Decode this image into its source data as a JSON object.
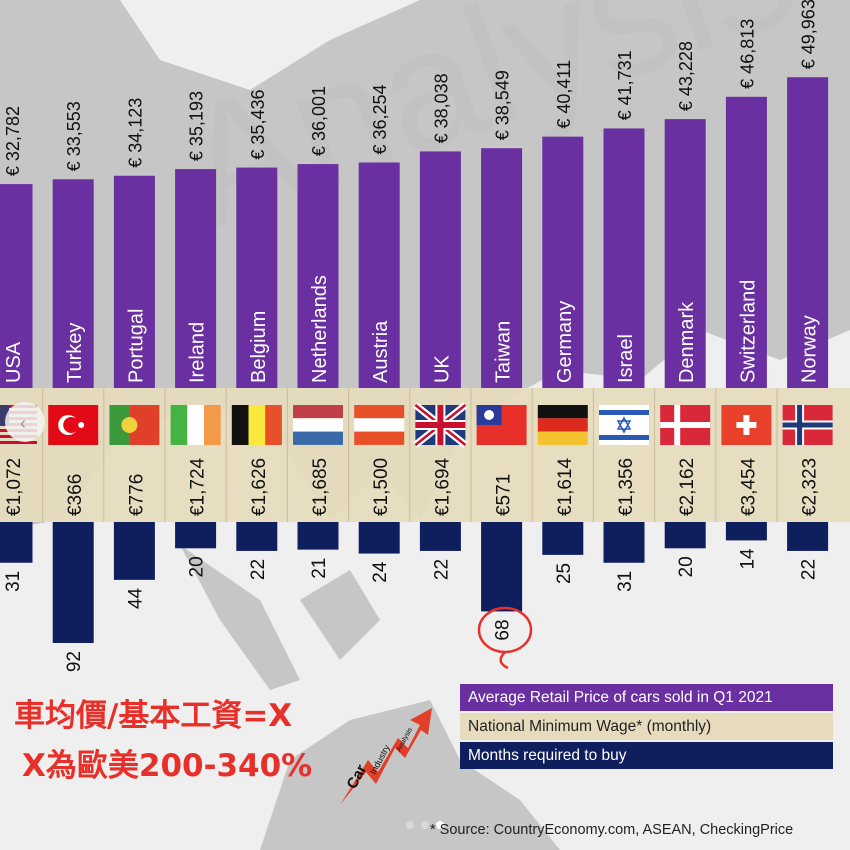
{
  "chart_data": {
    "type": "bar",
    "categories": [
      "USA",
      "Turkey",
      "Portugal",
      "Ireland",
      "Belgium",
      "Netherlands",
      "Austria",
      "UK",
      "Taiwan",
      "Germany",
      "Israel",
      "Denmark",
      "Switzerland",
      "Norway"
    ],
    "series": [
      {
        "name": "Average Retail Price of cars sold in Q1 2021",
        "color": "#6a2fa0",
        "values": [
          32782,
          33553,
          34123,
          35193,
          35436,
          36001,
          36254,
          38038,
          38549,
          40411,
          41731,
          43228,
          46813,
          49963
        ],
        "labels": [
          "€ 32,782",
          "€ 33,553",
          "€ 34,123",
          "€ 35,193",
          "€ 35,436",
          "€ 36,001",
          "€ 36,254",
          "€ 38,038",
          "€ 38,549",
          "€ 40,411",
          "€ 41,731",
          "€ 43,228",
          "€ 46,813",
          "€ 49,963"
        ]
      },
      {
        "name": "National Minimum Wage* (monthly)",
        "color": "#e6dbbd",
        "values": [
          1072,
          366,
          776,
          1724,
          1626,
          1685,
          1500,
          1694,
          571,
          1614,
          1356,
          2162,
          3454,
          2323
        ],
        "labels": [
          "€1,072",
          "€366",
          "€776",
          "€1,724",
          "€1,626",
          "€1,685",
          "€1,500",
          "€1,694",
          "€571",
          "€1,614",
          "€1,356",
          "€2,162",
          "€3,454",
          "€2,323"
        ]
      },
      {
        "name": "Months required to buy",
        "color": "#0f1e5c",
        "values": [
          31,
          92,
          44,
          20,
          22,
          21,
          24,
          22,
          68,
          25,
          31,
          20,
          14,
          22
        ],
        "labels": [
          "31",
          "92",
          "44",
          "20",
          "22",
          "21",
          "24",
          "22",
          "68",
          "25",
          "31",
          "20",
          "14",
          "22"
        ]
      }
    ],
    "flags": [
      "flag-usa",
      "flag-turkey",
      "flag-portugal",
      "flag-ireland",
      "flag-belgium",
      "flag-netherlands",
      "flag-austria",
      "flag-uk",
      "flag-taiwan",
      "flag-germany",
      "flag-israel",
      "flag-denmark",
      "flag-switzerland",
      "flag-norway"
    ],
    "highlight": {
      "category": "Taiwan",
      "color": "#e8302a"
    },
    "legend": [
      "Average Retail Price of cars sold in Q1 2021",
      "National Minimum Wage* (monthly)",
      "Months required to buy"
    ],
    "source": "* Source: CountryEconomy.com, ASEAN, CheckingPrice"
  },
  "annotation": {
    "line1": "車均價/基本工資=X",
    "line2": "X為歐美200-340%",
    "color": "#e8302a"
  },
  "watermark": "Analysis",
  "logo": {
    "words": [
      "Car",
      "Industry",
      "Analysis"
    ]
  }
}
